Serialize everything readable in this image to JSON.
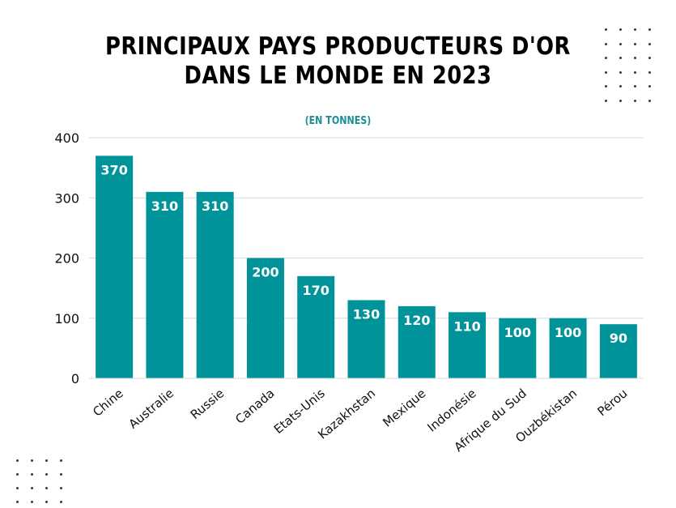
{
  "title_lines": [
    "PRINCIPAUX PAYS PRODUCTEURS D'OR",
    "DANS LE MONDE EN 2023"
  ],
  "subtitle": "(EN TONNES)",
  "colors": {
    "bar": "#00949a",
    "accent": "#1b8f95",
    "dots": "#1e3f66",
    "grid": "#d9d9d9",
    "text": "#111111"
  },
  "chart_data": {
    "type": "bar",
    "title": "PRINCIPAUX PAYS PRODUCTEURS D'OR DANS LE MONDE EN 2023",
    "subtitle": "(EN TONNES)",
    "categories": [
      "Chine",
      "Australie",
      "Russie",
      "Canada",
      "Etats-Unis",
      "Kazakhstan",
      "Mexique",
      "Indonésie",
      "Afrique du Sud",
      "Ouzbékistan",
      "Pérou"
    ],
    "values": [
      370,
      310,
      310,
      200,
      170,
      130,
      120,
      110,
      100,
      100,
      90
    ],
    "yticks": [
      0,
      100,
      200,
      300,
      400
    ],
    "ylim": [
      0,
      400
    ],
    "grid": true,
    "data_labels": true
  }
}
